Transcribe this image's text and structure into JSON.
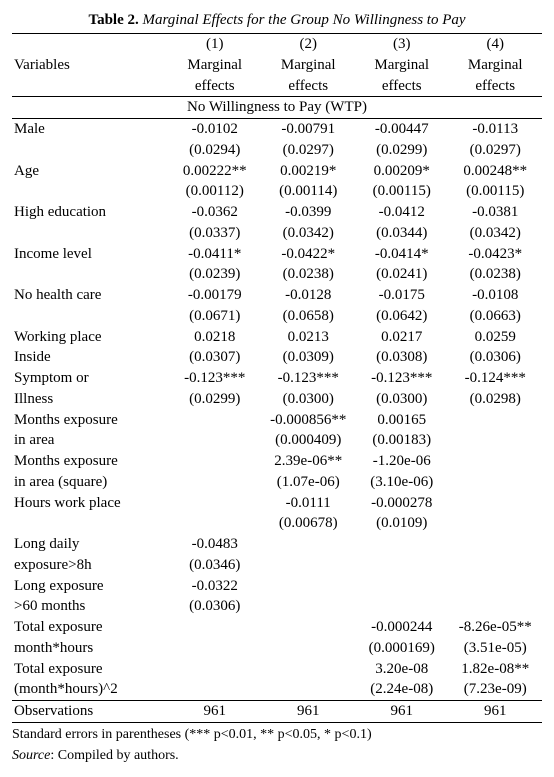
{
  "title": {
    "label": "Table 2.",
    "caption": "Marginal Effects for the Group No Willingness to Pay"
  },
  "header": {
    "varlabel": "Variables",
    "cols": [
      "(1)",
      "(2)",
      "(3)",
      "(4)"
    ],
    "sub": "Marginal effects",
    "section": "No Willingness to Pay (WTP)"
  },
  "rows": [
    {
      "label": "Male",
      "est": [
        "-0.0102",
        "-0.00791",
        "-0.00447",
        "-0.0113"
      ],
      "se": [
        "(0.0294)",
        "(0.0297)",
        "(0.0299)",
        "(0.0297)"
      ]
    },
    {
      "label": "Age",
      "est": [
        "0.00222**",
        "0.00219*",
        "0.00209*",
        "0.00248**"
      ],
      "se": [
        "(0.00112)",
        "(0.00114)",
        "(0.00115)",
        "(0.00115)"
      ]
    },
    {
      "label": "High education",
      "est": [
        "-0.0362",
        "-0.0399",
        "-0.0412",
        "-0.0381"
      ],
      "se": [
        "(0.0337)",
        "(0.0342)",
        "(0.0344)",
        "(0.0342)"
      ]
    },
    {
      "label": "Income level",
      "est": [
        "-0.0411*",
        "-0.0422*",
        "-0.0414*",
        "-0.0423*"
      ],
      "se": [
        "(0.0239)",
        "(0.0238)",
        "(0.0241)",
        "(0.0238)"
      ]
    },
    {
      "label": "No health care",
      "est": [
        "-0.00179",
        "-0.0128",
        "-0.0175",
        "-0.0108"
      ],
      "se": [
        "(0.0671)",
        "(0.0658)",
        "(0.0642)",
        "(0.0663)"
      ]
    },
    {
      "label": "Working place Inside",
      "est": [
        "0.0218",
        "0.0213",
        "0.0217",
        "0.0259"
      ],
      "se": [
        "(0.0307)",
        "(0.0309)",
        "(0.0308)",
        "(0.0306)"
      ]
    },
    {
      "label": "Symptom or Illness",
      "est": [
        "-0.123***",
        "-0.123***",
        "-0.123***",
        "-0.124***"
      ],
      "se": [
        "(0.0299)",
        "(0.0300)",
        "(0.0300)",
        "(0.0298)"
      ]
    },
    {
      "label": "Months exposure in area",
      "est": [
        "",
        "-0.000856**",
        "0.00165",
        ""
      ],
      "se": [
        "",
        "(0.000409)",
        "(0.00183)",
        ""
      ]
    },
    {
      "label": "Months exposure in area (square)",
      "est": [
        "",
        "2.39e-06**",
        "-1.20e-06",
        ""
      ],
      "se": [
        "",
        "(1.07e-06)",
        "(3.10e-06)",
        ""
      ]
    },
    {
      "label": "Hours work place",
      "est": [
        "",
        "-0.0111",
        "-0.000278",
        ""
      ],
      "se": [
        "",
        "(0.00678)",
        "(0.0109)",
        ""
      ]
    },
    {
      "label": "Long daily exposure>8h",
      "est": [
        "-0.0483",
        "",
        "",
        ""
      ],
      "se": [
        "(0.0346)",
        "",
        "",
        ""
      ]
    },
    {
      "label": "Long exposure >60 months",
      "est": [
        "-0.0322",
        "",
        "",
        ""
      ],
      "se": [
        "(0.0306)",
        "",
        "",
        ""
      ]
    },
    {
      "label": "Total exposure month*hours",
      "est": [
        "",
        "",
        "-0.000244",
        "-8.26e-05**"
      ],
      "se": [
        "",
        "",
        "(0.000169)",
        "(3.51e-05)"
      ]
    },
    {
      "label": "Total exposure (month*hours)^2",
      "est": [
        "",
        "",
        "3.20e-08",
        "1.82e-08**"
      ],
      "se": [
        "",
        "",
        "(2.24e-08)",
        "(7.23e-09)"
      ]
    }
  ],
  "obs": {
    "label": "Observations",
    "vals": [
      "961",
      "961",
      "961",
      "961"
    ]
  },
  "foot": {
    "line1": "Standard errors in parentheses (*** p<0.01, ** p<0.05, * p<0.1)",
    "srcLabel": "Source",
    "srcText": ": Compiled by authors."
  }
}
